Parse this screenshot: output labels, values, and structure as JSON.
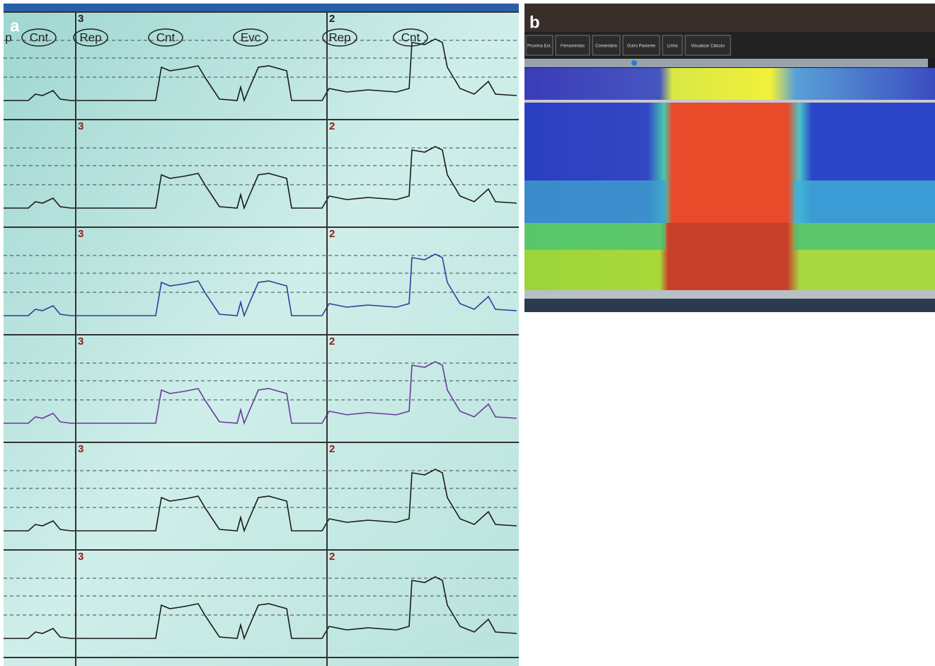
{
  "panel_a": {
    "label": "a",
    "annotations": [
      "p",
      "Cnt",
      "Rep",
      "Cnt",
      "Evc",
      "Rep",
      "Cnt"
    ],
    "rows": [
      {
        "left": "3",
        "right": "2"
      },
      {
        "left": "3",
        "right": "2"
      },
      {
        "left": "3",
        "right": "2"
      },
      {
        "left": "3",
        "right": "2"
      },
      {
        "left": "3",
        "right": "2"
      },
      {
        "left": "3",
        "right": "2"
      }
    ]
  },
  "panel_b": {
    "label": "b",
    "buttons": [
      "Proxima Est.",
      "Ferramentas",
      "Comentário",
      "Outro Paciente",
      "Linha",
      "Visualizar Cálculo"
    ]
  }
}
